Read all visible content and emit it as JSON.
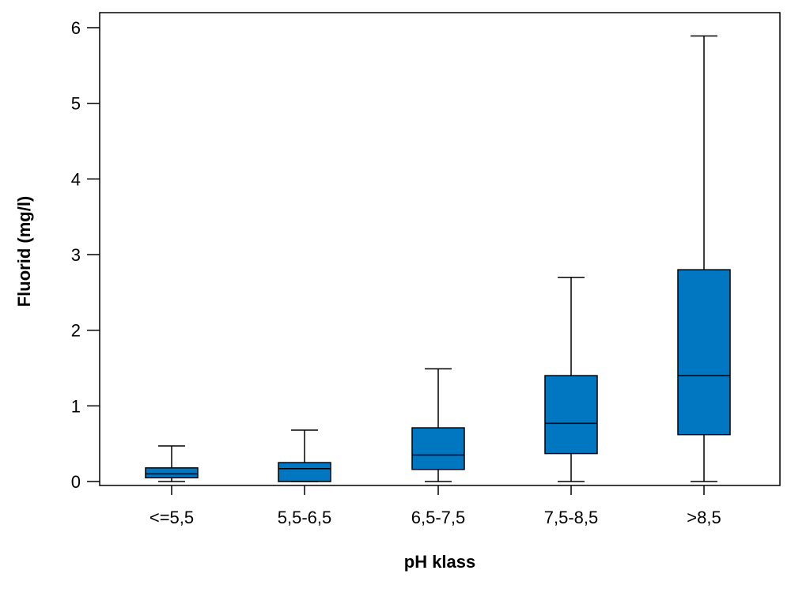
{
  "chart_data": {
    "type": "box",
    "xlabel": "pH klass",
    "ylabel": "Fluorid (mg/l)",
    "ylim": [
      0,
      6
    ],
    "yticks": [
      0,
      1,
      2,
      3,
      4,
      5,
      6
    ],
    "ytick_labels": [
      "0",
      "1",
      "2",
      "3",
      "4",
      "5",
      "6"
    ],
    "categories": [
      "<=5,5",
      "5,5-6,5",
      "6,5-7,5",
      "7,5-8,5",
      ">8,5"
    ],
    "boxes": [
      {
        "category": "<=5,5",
        "min": 0,
        "q1": 0.05,
        "median": 0.1,
        "q3": 0.18,
        "max": 0.47
      },
      {
        "category": "5,5-6,5",
        "min": 0,
        "q1": 0.0,
        "median": 0.17,
        "q3": 0.25,
        "max": 0.68
      },
      {
        "category": "6,5-7,5",
        "min": 0,
        "q1": 0.16,
        "median": 0.35,
        "q3": 0.71,
        "max": 1.49
      },
      {
        "category": "7,5-8,5",
        "min": 0,
        "q1": 0.37,
        "median": 0.77,
        "q3": 1.4,
        "max": 2.7
      },
      {
        "category": ">8,5",
        "min": 0,
        "q1": 0.62,
        "median": 1.4,
        "q3": 2.8,
        "max": 5.89
      }
    ],
    "box_fill_color": "#0077c0",
    "line_color": "#000000",
    "grid": false,
    "legend": false
  }
}
